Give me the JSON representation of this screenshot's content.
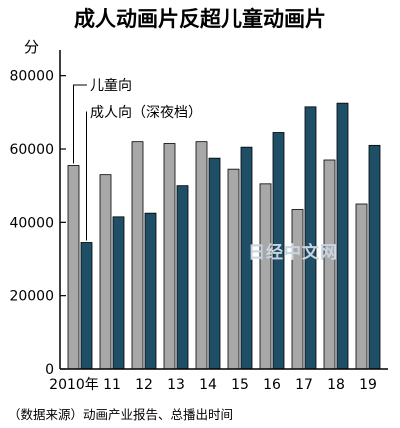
{
  "chart_data": {
    "type": "bar",
    "title": "成人动画片反超儿童动画片",
    "ylabel": "分",
    "xlabel": "",
    "categories": [
      "2010年",
      "11",
      "12",
      "13",
      "14",
      "15",
      "16",
      "17",
      "18",
      "19"
    ],
    "series": [
      {
        "name": "儿童向",
        "values": [
          55500,
          53000,
          62000,
          61500,
          62000,
          54500,
          50500,
          43500,
          57000,
          45000
        ]
      },
      {
        "name": "成人向（深夜档）",
        "values": [
          34500,
          41500,
          42500,
          50000,
          57500,
          60500,
          64500,
          71500,
          72500,
          61000
        ]
      }
    ],
    "ylim": [
      0,
      87000
    ],
    "yticks": [
      0,
      20000,
      40000,
      60000,
      80000
    ],
    "grid": false,
    "legend_placement": "top-left",
    "source": "（数据来源）动画产业报告、总播出时间",
    "watermark": "日经中文网",
    "colors": {
      "series1": "#a8a8a8",
      "series2": "#1f4f66",
      "outline": "#000000"
    }
  }
}
